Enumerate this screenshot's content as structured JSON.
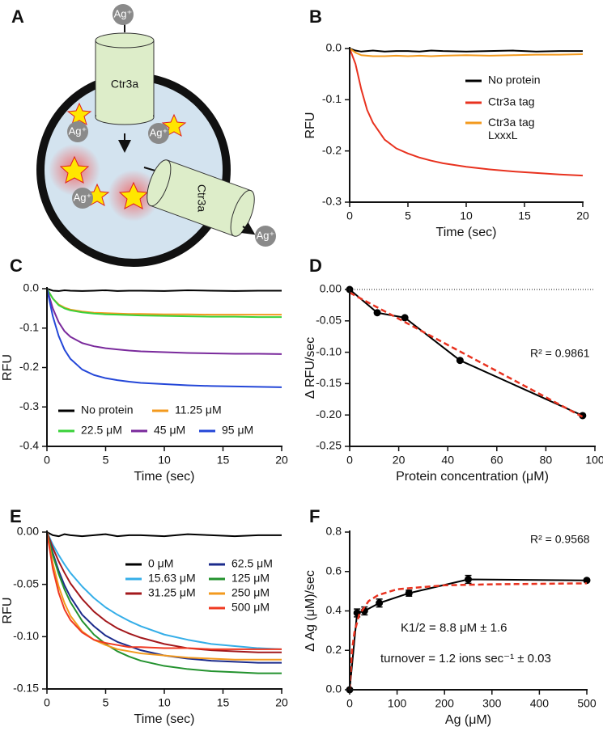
{
  "diagram": {
    "panel": "A",
    "ion": "Ag⁺",
    "protein": "Ctr3a"
  },
  "chart_data": [
    {
      "type": "line",
      "panel": "B",
      "x_label": "Time (sec)",
      "y_label": "RFU",
      "x": [
        0,
        0.5,
        1,
        1.5,
        2,
        3,
        4,
        5,
        6,
        7,
        8,
        10,
        12,
        14,
        16,
        18,
        20
      ],
      "xlim": [
        0,
        20
      ],
      "xticks": [
        0,
        5,
        10,
        15,
        20
      ],
      "ylim": [
        -0.3,
        0
      ],
      "yticks": [
        {
          "value": 0,
          "label": "0.0"
        },
        -0.1,
        -0.2,
        -0.3
      ],
      "series": [
        {
          "name": "No protein",
          "color": "#000000",
          "values": [
            0,
            -0.004,
            -0.006,
            -0.005,
            -0.004,
            -0.006,
            -0.005,
            -0.005,
            -0.006,
            -0.004,
            -0.005,
            -0.006,
            -0.005,
            -0.004,
            -0.006,
            -0.005,
            -0.005
          ]
        },
        {
          "name": "Ctr3a tag",
          "color": "#e8321f",
          "values": [
            0,
            -0.03,
            -0.08,
            -0.12,
            -0.145,
            -0.178,
            -0.195,
            -0.205,
            -0.213,
            -0.219,
            -0.224,
            -0.231,
            -0.236,
            -0.24,
            -0.243,
            -0.246,
            -0.248
          ]
        },
        {
          "name": "Ctr3a tag\nLxxxL",
          "color": "#f39a1e",
          "values": [
            0,
            -0.008,
            -0.013,
            -0.014,
            -0.015,
            -0.015,
            -0.014,
            -0.015,
            -0.014,
            -0.015,
            -0.014,
            -0.013,
            -0.014,
            -0.013,
            -0.012,
            -0.012,
            -0.011
          ]
        }
      ]
    },
    {
      "type": "line",
      "panel": "C",
      "x_label": "Time (sec)",
      "y_label": "RFU",
      "x": [
        0,
        0.5,
        1,
        1.5,
        2,
        3,
        4,
        5,
        6,
        7,
        8,
        10,
        12,
        14,
        16,
        18,
        20
      ],
      "xlim": [
        0,
        20
      ],
      "xticks": [
        0,
        5,
        10,
        15,
        20
      ],
      "ylim": [
        -0.4,
        0
      ],
      "yticks": [
        {
          "value": 0,
          "label": "0.0"
        },
        -0.1,
        -0.2,
        -0.3,
        -0.4
      ],
      "series": [
        {
          "name": "No protein",
          "color": "#000000",
          "values": [
            0,
            -0.005,
            -0.006,
            -0.004,
            -0.005,
            -0.006,
            -0.005,
            -0.004,
            -0.006,
            -0.005,
            -0.005,
            -0.006,
            -0.004,
            -0.005,
            -0.006,
            -0.005,
            -0.005
          ]
        },
        {
          "name": "11.25 μM",
          "color": "#f39a1e",
          "values": [
            0,
            -0.025,
            -0.04,
            -0.048,
            -0.053,
            -0.058,
            -0.061,
            -0.062,
            -0.063,
            -0.064,
            -0.064,
            -0.065,
            -0.065,
            -0.066,
            -0.066,
            -0.066,
            -0.066
          ]
        },
        {
          "name": "22.5 μM",
          "color": "#3ad13a",
          "values": [
            0,
            -0.025,
            -0.042,
            -0.05,
            -0.055,
            -0.06,
            -0.063,
            -0.065,
            -0.066,
            -0.067,
            -0.068,
            -0.069,
            -0.07,
            -0.071,
            -0.071,
            -0.072,
            -0.072
          ]
        },
        {
          "name": "45 μM",
          "color": "#7a2a9c",
          "values": [
            0,
            -0.05,
            -0.085,
            -0.108,
            -0.122,
            -0.138,
            -0.146,
            -0.151,
            -0.154,
            -0.157,
            -0.159,
            -0.161,
            -0.163,
            -0.164,
            -0.165,
            -0.165,
            -0.166
          ]
        },
        {
          "name": "95 μM",
          "color": "#2447d8",
          "values": [
            0,
            -0.07,
            -0.12,
            -0.155,
            -0.178,
            -0.205,
            -0.219,
            -0.227,
            -0.232,
            -0.236,
            -0.239,
            -0.242,
            -0.245,
            -0.247,
            -0.248,
            -0.249,
            -0.25
          ]
        }
      ]
    },
    {
      "type": "scatter",
      "panel": "D",
      "x_label": "Protein concentration (μM)",
      "y_label": "Δ RFU/sec",
      "x": [
        0,
        11.25,
        22.5,
        45,
        95
      ],
      "xlim": [
        0,
        100
      ],
      "xticks": [
        0,
        20,
        40,
        60,
        80,
        100
      ],
      "ylim": [
        -0.25,
        0
      ],
      "yticks": [
        {
          "value": 0,
          "label": "0.00"
        },
        -0.05,
        {
          "value": -0.1,
          "label": "-0.10"
        },
        -0.15,
        {
          "value": -0.2,
          "label": "-0.20"
        },
        -0.25
      ],
      "zero_line": true,
      "annotations": [
        "R² = 0.9861"
      ],
      "series": [
        {
          "color": "#000000",
          "markers": true,
          "values": [
            0,
            -0.037,
            -0.045,
            -0.113,
            -0.201
          ]
        },
        {
          "color": "#e8321f",
          "dashed": true,
          "x": [
            0,
            95
          ],
          "values": [
            -0.005,
            -0.203
          ]
        }
      ]
    },
    {
      "type": "line",
      "panel": "E",
      "x_label": "Time (sec)",
      "y_label": "RFU",
      "x": [
        0,
        0.5,
        1,
        1.5,
        2,
        3,
        4,
        5,
        6,
        7,
        8,
        10,
        12,
        14,
        16,
        18,
        20
      ],
      "xlim": [
        0,
        20
      ],
      "xticks": [
        0,
        5,
        10,
        15,
        20
      ],
      "ylim": [
        -0.15,
        0
      ],
      "yticks": [
        {
          "value": 0,
          "label": "0.00"
        },
        -0.05,
        {
          "value": -0.1,
          "label": "-0.10"
        },
        -0.15
      ],
      "series": [
        {
          "name": "0 μM",
          "color": "#000000",
          "values": [
            0,
            -0.003,
            -0.004,
            -0.002,
            -0.003,
            -0.004,
            -0.003,
            -0.002,
            -0.004,
            -0.003,
            -0.003,
            -0.004,
            -0.002,
            -0.003,
            -0.004,
            -0.003,
            -0.003
          ]
        },
        {
          "name": "15.63 μM",
          "color": "#35aee8",
          "values": [
            0,
            -0.012,
            -0.022,
            -0.031,
            -0.039,
            -0.052,
            -0.063,
            -0.072,
            -0.079,
            -0.085,
            -0.09,
            -0.098,
            -0.103,
            -0.107,
            -0.109,
            -0.111,
            -0.112
          ]
        },
        {
          "name": "31.25 μM",
          "color": "#a3181c",
          "values": [
            0,
            -0.015,
            -0.028,
            -0.039,
            -0.049,
            -0.064,
            -0.076,
            -0.085,
            -0.092,
            -0.097,
            -0.101,
            -0.107,
            -0.111,
            -0.113,
            -0.114,
            -0.115,
            -0.115
          ]
        },
        {
          "name": "62.5 μM",
          "color": "#1b2b8c",
          "values": [
            0,
            -0.02,
            -0.037,
            -0.051,
            -0.062,
            -0.079,
            -0.09,
            -0.099,
            -0.105,
            -0.109,
            -0.113,
            -0.118,
            -0.121,
            -0.123,
            -0.124,
            -0.125,
            -0.125
          ]
        },
        {
          "name": "125 μM",
          "color": "#23922e",
          "values": [
            0,
            -0.022,
            -0.04,
            -0.055,
            -0.067,
            -0.085,
            -0.098,
            -0.107,
            -0.114,
            -0.119,
            -0.123,
            -0.128,
            -0.131,
            -0.133,
            -0.134,
            -0.135,
            -0.135
          ]
        },
        {
          "name": "250 μM",
          "color": "#f39a1e",
          "values": [
            0,
            -0.03,
            -0.052,
            -0.068,
            -0.08,
            -0.095,
            -0.103,
            -0.108,
            -0.112,
            -0.114,
            -0.116,
            -0.118,
            -0.12,
            -0.121,
            -0.122,
            -0.122,
            -0.122
          ]
        },
        {
          "name": "500 μM",
          "color": "#ef3a22",
          "values": [
            0,
            -0.035,
            -0.058,
            -0.074,
            -0.084,
            -0.096,
            -0.103,
            -0.106,
            -0.108,
            -0.11,
            -0.11,
            -0.111,
            -0.111,
            -0.112,
            -0.112,
            -0.112,
            -0.112
          ]
        }
      ]
    },
    {
      "type": "scatter",
      "panel": "F",
      "x_label": "Ag (μM)",
      "y_label": "Δ Ag (μM)/sec",
      "x": [
        0,
        15.63,
        31.25,
        62.5,
        125,
        250,
        500
      ],
      "xlim": [
        0,
        500
      ],
      "xticks": [
        0,
        100,
        200,
        300,
        400,
        500
      ],
      "ylim": [
        0,
        0.8
      ],
      "yticks": [
        {
          "value": 0,
          "label": "0.0"
        },
        0.2,
        0.4,
        0.6,
        0.8
      ],
      "annotations": [
        "R² = 0.9568",
        "K1/2 = 8.8 μM ± 1.6",
        "turnover = 1.2 ions sec⁻¹ ± 0.03"
      ],
      "series": [
        {
          "color": "#000000",
          "markers": true,
          "values": [
            0,
            0.39,
            0.4,
            0.44,
            0.49,
            0.56,
            0.555
          ],
          "errors": [
            0,
            0.02,
            0.02,
            0.02,
            0.015,
            0.02,
            0
          ]
        },
        {
          "color": "#e8321f",
          "dashed": true,
          "x": [
            0,
            5,
            10,
            20,
            40,
            60,
            100,
            200,
            300,
            500
          ],
          "values": [
            0,
            0.2,
            0.29,
            0.38,
            0.45,
            0.48,
            0.51,
            0.53,
            0.535,
            0.54
          ]
        }
      ]
    }
  ]
}
